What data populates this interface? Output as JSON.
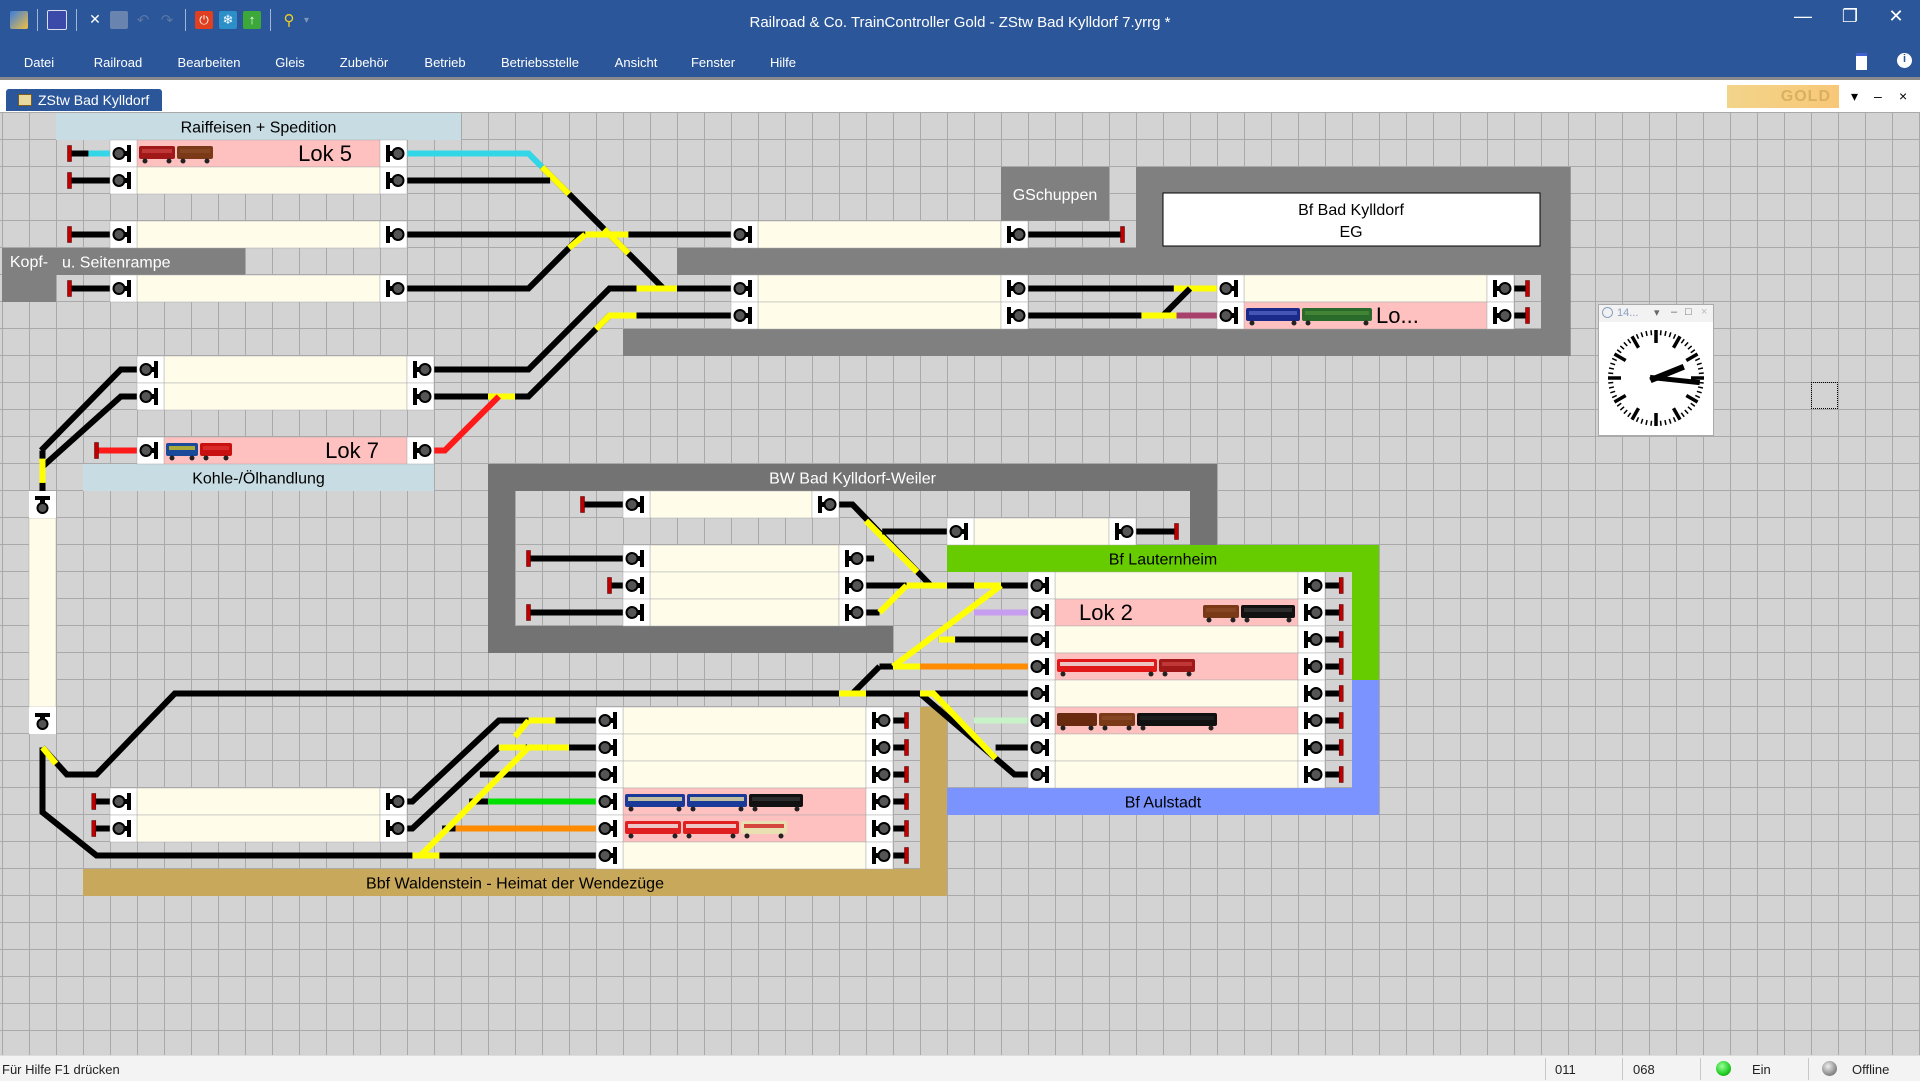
{
  "window": {
    "title": "Railroad & Co. TrainController Gold - ZStw Bad Kylldorf 7.yrrg *",
    "controls": {
      "minimize": "—",
      "restore": "❐",
      "close": "✕"
    }
  },
  "toolbar": {
    "icons": [
      "app-icon",
      "save-icon",
      "tools-icon",
      "properties-icon",
      "undo-icon",
      "redo-icon",
      "stop-icon",
      "freeze-icon",
      "go-icon",
      "markers-icon"
    ]
  },
  "menu": [
    "Datei",
    "Railroad",
    "Bearbeiten",
    "Gleis",
    "Zubehör",
    "Betrieb",
    "Betriebsstelle",
    "Ansicht",
    "Fenster",
    "Hilfe"
  ],
  "tab": {
    "label": "ZStw Bad Kylldorf",
    "badge": "GOLD",
    "dropdown": "▾",
    "minimize": "–",
    "close": "×"
  },
  "labels": {
    "raiffeisen": "Raiffeisen + Spedition",
    "gschuppen": "GSchuppen",
    "bf_bad_kylldorf_1": "Bf Bad Kylldorf",
    "bf_bad_kylldorf_2": "EG",
    "kopf": "Kopf-",
    "seitenrampe": "u. Seitenrampe",
    "kohle": "Kohle-/Ölhandlung",
    "bw": "BW Bad Kylldorf-Weiler",
    "lauternheim": "Bf Lauternheim",
    "aulstadt": "Bf Aulstadt",
    "waldenstein": "Bbf Waldenstein - Heimat der Wendezüge"
  },
  "blocks": {
    "lok5": "Lok 5",
    "lok7": "Lok 7",
    "lok2": "Lok 2",
    "lo": "Lo..."
  },
  "clock": {
    "title": "14...",
    "hour": 14,
    "minute": 16
  },
  "status": {
    "help": "Für Hilfe F1 drücken",
    "field1": "011",
    "field2": "068",
    "power": "Ein",
    "connection": "Offline"
  },
  "colors": {
    "titlebar": "#2b579a",
    "occupied_block": "#ffc0c0",
    "free_block": "#fffdea",
    "route_yellow": "#ffff00",
    "lauternheim": "#66cc00",
    "aulstadt": "#7b93ff",
    "waldenstein": "#c8a85a",
    "power_on": "#22cc22",
    "offline": "#909090"
  }
}
